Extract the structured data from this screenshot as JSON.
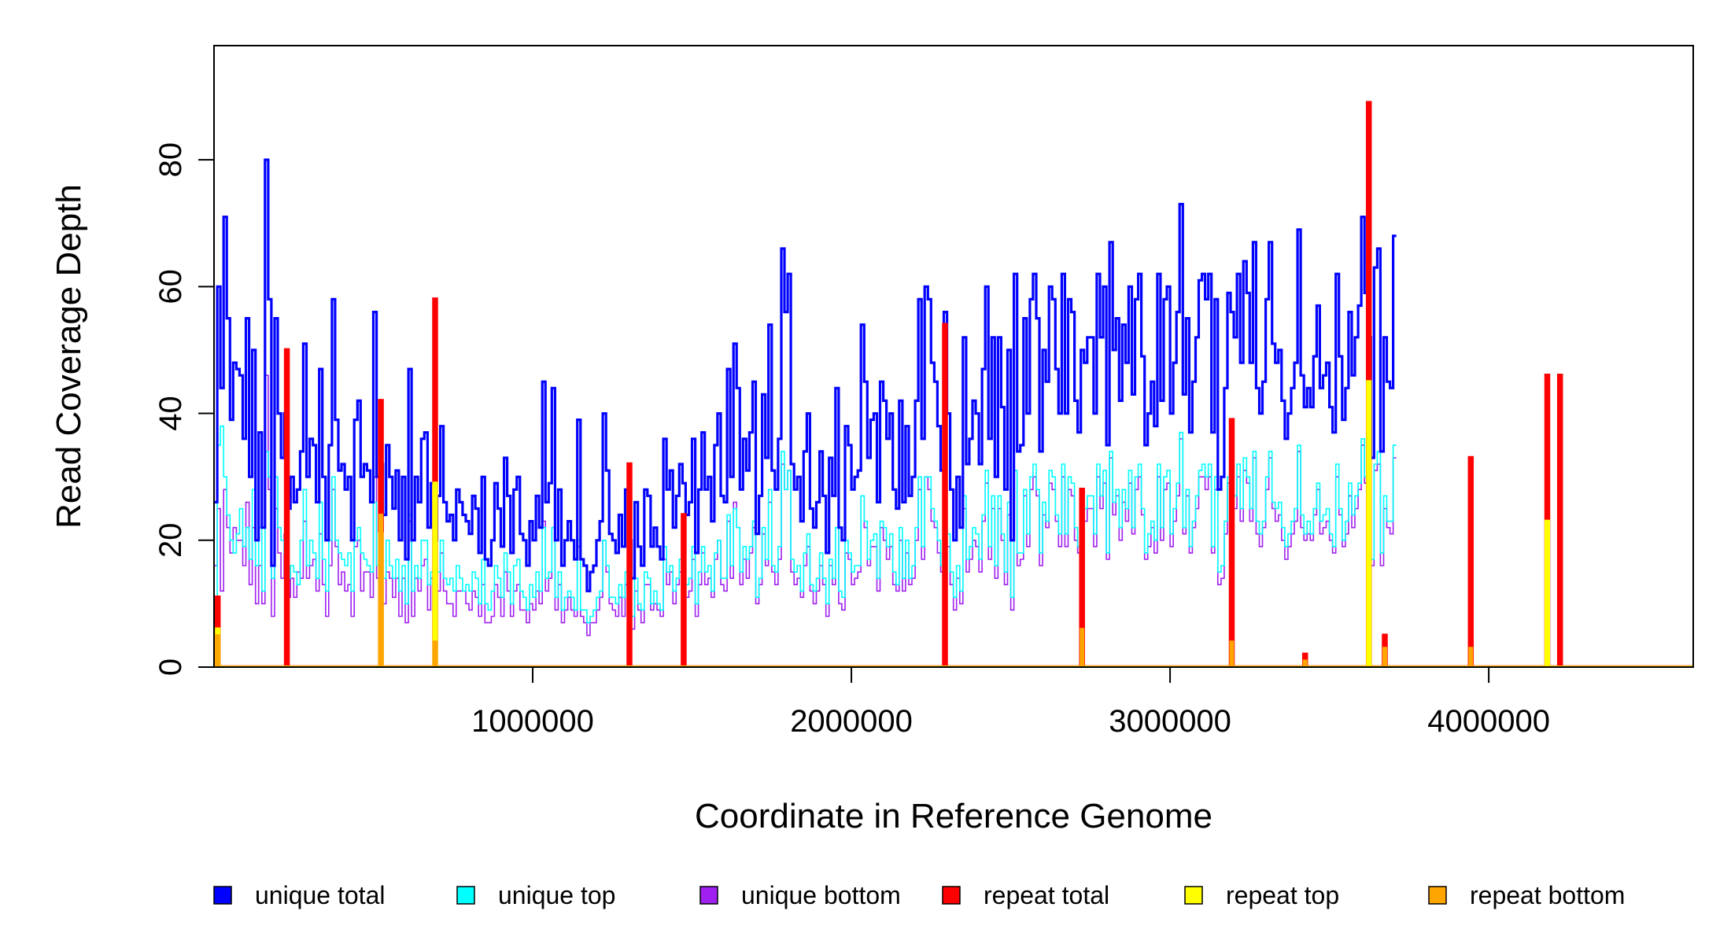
{
  "chart_data": {
    "type": "line",
    "title": "",
    "xlabel": "Coordinate in Reference Genome",
    "ylabel": "Read Coverage Depth",
    "xlim": [
      0,
      4641652
    ],
    "ylim": [
      0,
      98
    ],
    "x_ticks": [
      1000000,
      2000000,
      3000000,
      4000000
    ],
    "x_tick_labels": [
      "1000000",
      "2000000",
      "3000000",
      "4000000"
    ],
    "y_ticks": [
      0,
      20,
      40,
      60,
      80
    ],
    "y_tick_labels": [
      "0",
      "20",
      "40",
      "60",
      "80"
    ],
    "grid": false,
    "legend_position": "bottom",
    "bin_width": 10000,
    "series": [
      {
        "name": "unique total",
        "color": "#0000ff",
        "values": [
          26,
          60,
          44,
          71,
          55,
          39,
          48,
          47,
          46,
          36,
          55,
          30,
          50,
          20,
          37,
          22,
          80,
          58,
          16,
          55,
          40,
          33,
          40,
          25,
          30,
          26,
          28,
          34,
          51,
          30,
          36,
          35,
          26,
          47,
          30,
          20,
          35,
          58,
          39,
          31,
          32,
          28,
          30,
          20,
          39,
          42,
          30,
          32,
          31,
          26,
          56,
          30,
          32,
          24,
          35,
          30,
          25,
          31,
          20,
          30,
          17,
          47,
          20,
          30,
          26,
          36,
          37,
          22,
          29,
          20,
          27,
          38,
          26,
          23,
          24,
          20,
          28,
          26,
          24,
          23,
          21,
          27,
          25,
          18,
          30,
          17,
          16,
          20,
          29,
          25,
          19,
          33,
          27,
          18,
          28,
          30,
          21,
          20,
          16,
          23,
          20,
          27,
          22,
          45,
          26,
          29,
          44,
          20,
          28,
          16,
          20,
          23,
          20,
          17,
          39,
          17,
          16,
          12,
          15,
          16,
          20,
          23,
          40,
          31,
          21,
          20,
          18,
          24,
          19,
          28,
          20,
          14,
          26,
          19,
          16,
          28,
          27,
          19,
          22,
          19,
          17,
          36,
          28,
          31,
          22,
          27,
          32,
          29,
          24,
          26,
          36,
          18,
          28,
          37,
          28,
          30,
          23,
          35,
          40,
          27,
          26,
          47,
          30,
          51,
          44,
          28,
          36,
          31,
          37,
          45,
          21,
          27,
          43,
          33,
          54,
          31,
          28,
          36,
          66,
          56,
          62,
          32,
          28,
          30,
          23,
          34,
          40,
          25,
          22,
          26,
          34,
          27,
          18,
          33,
          27,
          44,
          22,
          20,
          38,
          35,
          28,
          30,
          31,
          54,
          45,
          33,
          39,
          40,
          26,
          45,
          42,
          36,
          40,
          28,
          25,
          42,
          26,
          38,
          27,
          30,
          42,
          58,
          36,
          60,
          58,
          48,
          45,
          38,
          31,
          56,
          40,
          28,
          20,
          30,
          22,
          52,
          32,
          36,
          42,
          40,
          32,
          47,
          60,
          36,
          52,
          30,
          52,
          41,
          28,
          50,
          20,
          62,
          34,
          35,
          55,
          40,
          58,
          62,
          55,
          34,
          50,
          45,
          60,
          58,
          47,
          40,
          62,
          40,
          58,
          56,
          42,
          37,
          50,
          48,
          52,
          52,
          40,
          62,
          52,
          60,
          35,
          67,
          50,
          55,
          42,
          54,
          48,
          60,
          43,
          58,
          62,
          49,
          35,
          40,
          45,
          38,
          62,
          42,
          58,
          60,
          40,
          48,
          56,
          73,
          43,
          55,
          37,
          45,
          52,
          61,
          62,
          58,
          62,
          37,
          58,
          28,
          30,
          44,
          59,
          56,
          52,
          62,
          48,
          64,
          59,
          48,
          67,
          44,
          40,
          45,
          58,
          67,
          51,
          48,
          50,
          42,
          36,
          40,
          44,
          48,
          69,
          46,
          41,
          44,
          41,
          49,
          57,
          44,
          46,
          48,
          41,
          37,
          62,
          49,
          39,
          44,
          56,
          46,
          52,
          57,
          71,
          59,
          52,
          33,
          63,
          66,
          34,
          52,
          45,
          44,
          68
        ]
      },
      {
        "name": "unique top",
        "color": "#00ffff",
        "values": [
          10,
          35,
          38,
          30,
          24,
          20,
          18,
          21,
          25,
          19,
          22,
          17,
          28,
          16,
          22,
          12,
          34,
          30,
          14,
          30,
          22,
          20,
          18,
          14,
          16,
          15,
          13,
          20,
          28,
          16,
          20,
          18,
          14,
          26,
          17,
          12,
          20,
          30,
          20,
          18,
          17,
          16,
          18,
          12,
          20,
          22,
          18,
          17,
          16,
          15,
          26,
          16,
          18,
          14,
          20,
          16,
          14,
          17,
          12,
          16,
          10,
          24,
          12,
          16,
          14,
          20,
          20,
          13,
          15,
          12,
          15,
          20,
          14,
          13,
          14,
          12,
          16,
          14,
          12,
          13,
          12,
          15,
          14,
          10,
          17,
          10,
          9,
          12,
          16,
          14,
          11,
          18,
          15,
          10,
          16,
          17,
          12,
          11,
          9,
          13,
          11,
          15,
          12,
          22,
          14,
          15,
          22,
          11,
          15,
          9,
          11,
          12,
          11,
          9,
          20,
          9,
          9,
          7,
          8,
          9,
          11,
          12,
          20,
          16,
          11,
          11,
          10,
          13,
          11,
          15,
          11,
          8,
          14,
          10,
          9,
          15,
          14,
          10,
          12,
          10,
          9,
          19,
          15,
          16,
          12,
          14,
          17,
          15,
          13,
          14,
          19,
          10,
          15,
          19,
          15,
          16,
          12,
          18,
          20,
          14,
          14,
          24,
          16,
          25,
          22,
          15,
          19,
          17,
          19,
          23,
          11,
          14,
          22,
          17,
          28,
          16,
          15,
          19,
          34,
          28,
          31,
          17,
          15,
          16,
          12,
          18,
          21,
          13,
          12,
          14,
          18,
          14,
          10,
          17,
          14,
          22,
          12,
          11,
          20,
          18,
          15,
          16,
          16,
          27,
          23,
          17,
          20,
          21,
          14,
          23,
          22,
          19,
          21,
          15,
          13,
          22,
          14,
          20,
          14,
          16,
          22,
          30,
          19,
          30,
          30,
          25,
          23,
          20,
          16,
          28,
          21,
          15,
          11,
          16,
          12,
          27,
          17,
          19,
          22,
          21,
          17,
          24,
          31,
          19,
          27,
          16,
          27,
          21,
          15,
          26,
          11,
          31,
          18,
          18,
          28,
          21,
          30,
          32,
          28,
          18,
          26,
          23,
          31,
          30,
          24,
          21,
          32,
          21,
          30,
          29,
          22,
          19,
          26,
          25,
          27,
          27,
          21,
          32,
          27,
          31,
          18,
          34,
          26,
          28,
          22,
          28,
          25,
          31,
          22,
          30,
          32,
          25,
          18,
          21,
          23,
          20,
          32,
          22,
          30,
          31,
          21,
          25,
          29,
          37,
          22,
          28,
          19,
          23,
          27,
          31,
          32,
          30,
          32,
          19,
          30,
          15,
          16,
          23,
          30,
          29,
          27,
          32,
          25,
          33,
          30,
          25,
          34,
          23,
          21,
          23,
          30,
          34,
          26,
          25,
          26,
          22,
          19,
          21,
          23,
          25,
          35,
          24,
          21,
          23,
          21,
          25,
          29,
          23,
          24,
          25,
          21,
          19,
          32,
          25,
          20,
          23,
          29,
          24,
          27,
          29,
          36,
          30,
          27,
          17,
          32,
          34,
          18,
          27,
          23,
          23,
          35
        ]
      },
      {
        "name": "unique bottom",
        "color": "#a020f0",
        "values": [
          16,
          25,
          12,
          28,
          22,
          18,
          22,
          20,
          20,
          16,
          26,
          13,
          22,
          10,
          16,
          10,
          46,
          28,
          8,
          25,
          18,
          14,
          21,
          11,
          14,
          11,
          15,
          14,
          23,
          14,
          16,
          17,
          12,
          21,
          13,
          8,
          16,
          28,
          19,
          13,
          15,
          12,
          13,
          8,
          19,
          20,
          12,
          15,
          15,
          11,
          30,
          14,
          14,
          10,
          15,
          14,
          11,
          14,
          8,
          14,
          7,
          23,
          8,
          14,
          12,
          16,
          17,
          9,
          14,
          8,
          12,
          18,
          12,
          10,
          10,
          8,
          12,
          12,
          12,
          10,
          9,
          12,
          11,
          8,
          13,
          7,
          7,
          8,
          13,
          11,
          8,
          15,
          12,
          8,
          12,
          13,
          9,
          9,
          7,
          10,
          9,
          12,
          10,
          23,
          12,
          14,
          22,
          9,
          13,
          7,
          9,
          11,
          9,
          8,
          19,
          8,
          7,
          5,
          7,
          7,
          9,
          11,
          20,
          15,
          10,
          9,
          8,
          11,
          8,
          13,
          9,
          6,
          12,
          9,
          7,
          13,
          13,
          9,
          10,
          9,
          8,
          17,
          13,
          15,
          10,
          13,
          15,
          14,
          11,
          12,
          17,
          8,
          13,
          18,
          13,
          14,
          11,
          17,
          20,
          13,
          12,
          23,
          14,
          26,
          22,
          13,
          17,
          14,
          18,
          22,
          10,
          13,
          21,
          16,
          26,
          15,
          13,
          17,
          32,
          28,
          31,
          15,
          13,
          14,
          11,
          16,
          19,
          12,
          10,
          12,
          16,
          13,
          8,
          16,
          13,
          22,
          10,
          9,
          18,
          17,
          13,
          14,
          15,
          27,
          22,
          16,
          19,
          19,
          12,
          22,
          20,
          17,
          19,
          13,
          12,
          20,
          12,
          18,
          13,
          14,
          20,
          28,
          17,
          30,
          28,
          23,
          22,
          18,
          15,
          28,
          19,
          13,
          9,
          14,
          10,
          25,
          15,
          17,
          20,
          19,
          15,
          23,
          29,
          17,
          25,
          14,
          25,
          20,
          13,
          24,
          9,
          31,
          16,
          17,
          27,
          19,
          28,
          30,
          27,
          16,
          24,
          22,
          29,
          28,
          23,
          19,
          30,
          19,
          28,
          27,
          20,
          18,
          24,
          23,
          25,
          25,
          19,
          30,
          25,
          29,
          17,
          33,
          24,
          27,
          20,
          26,
          23,
          29,
          21,
          28,
          30,
          24,
          17,
          19,
          22,
          18,
          30,
          20,
          28,
          29,
          19,
          23,
          27,
          36,
          21,
          27,
          18,
          22,
          25,
          30,
          30,
          28,
          30,
          18,
          28,
          13,
          14,
          21,
          29,
          27,
          25,
          30,
          23,
          31,
          29,
          23,
          33,
          21,
          19,
          22,
          28,
          33,
          25,
          23,
          24,
          20,
          17,
          19,
          21,
          23,
          34,
          22,
          20,
          21,
          20,
          24,
          28,
          21,
          22,
          23,
          20,
          18,
          30,
          24,
          19,
          21,
          27,
          22,
          25,
          28,
          35,
          29,
          25,
          16,
          31,
          32,
          16,
          25,
          22,
          21,
          33
        ]
      },
      {
        "name": "repeat total",
        "color": "#ff0000",
        "peaks": [
          [
            8000,
            11
          ],
          [
            225000,
            50
          ],
          [
            520000,
            42
          ],
          [
            690000,
            58
          ],
          [
            1300000,
            32
          ],
          [
            1470000,
            24
          ],
          [
            2290000,
            54
          ],
          [
            2720000,
            28
          ],
          [
            3190000,
            39
          ],
          [
            3420000,
            2
          ],
          [
            3620000,
            89
          ],
          [
            3670000,
            5
          ],
          [
            3940000,
            33
          ],
          [
            4180000,
            46
          ],
          [
            4220000,
            46
          ]
        ]
      },
      {
        "name": "repeat top",
        "color": "#ffff00",
        "peaks": [
          [
            8000,
            6
          ],
          [
            520000,
            21
          ],
          [
            690000,
            29
          ],
          [
            3620000,
            45
          ],
          [
            4180000,
            23
          ]
        ]
      },
      {
        "name": "repeat bottom",
        "color": "#ffa500",
        "peaks": [
          [
            8000,
            5
          ],
          [
            520000,
            24
          ],
          [
            690000,
            4
          ],
          [
            2720000,
            6
          ],
          [
            3190000,
            4
          ],
          [
            3420000,
            1
          ],
          [
            3670000,
            3
          ],
          [
            3940000,
            3
          ]
        ]
      }
    ]
  }
}
